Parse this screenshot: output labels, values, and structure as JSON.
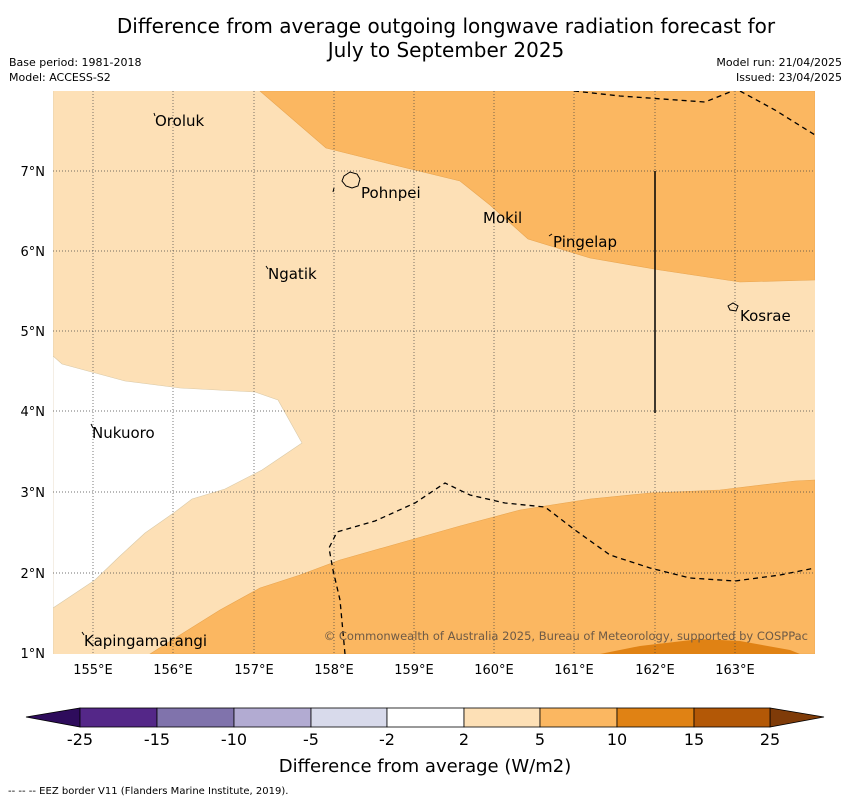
{
  "title_line1": "Difference from average outgoing longwave radiation forecast for",
  "title_line2": "July to September 2025",
  "base_period": "Base period: 1981-2018",
  "model": "Model: ACCESS-S2",
  "model_run": "Model run: 21/04/2025",
  "issued": "Issued: 23/04/2025",
  "lat_labels": [
    "7°N",
    "6°N",
    "5°N",
    "4°N",
    "3°N",
    "2°N",
    "1°N"
  ],
  "lon_labels": [
    "155°E",
    "156°E",
    "157°E",
    "158°E",
    "159°E",
    "160°E",
    "161°E",
    "162°E",
    "163°E"
  ],
  "places": {
    "oroluk": "Oroluk",
    "pohnpei": "Pohnpei",
    "mokil": "Mokil",
    "pingelap": "Pingelap",
    "ngatik": "Ngatik",
    "kosrae": "Kosrae",
    "nukuoro": "Nukuoro",
    "kapingamarangi": "Kapingamarangi"
  },
  "copyright": "© Commonwealth of Australia 2025, Bureau of Meteorology, supported by COSPPac",
  "colorbar": {
    "ticks": [
      "-25",
      "-15",
      "-10",
      "-5",
      "-2",
      "2",
      "5",
      "10",
      "15",
      "25"
    ],
    "colors": [
      "#2e0c5c",
      "#542788",
      "#8073ac",
      "#b2abd2",
      "#d8daeb",
      "#ffffff",
      "#fde0b6",
      "#fbb761",
      "#e08214",
      "#b35806",
      "#7f3b08"
    ],
    "label": "Difference from average (W/m2)"
  },
  "footer": "-- -- -- EEZ border V11 (Flanders Marine Institute, 2019)."
}
